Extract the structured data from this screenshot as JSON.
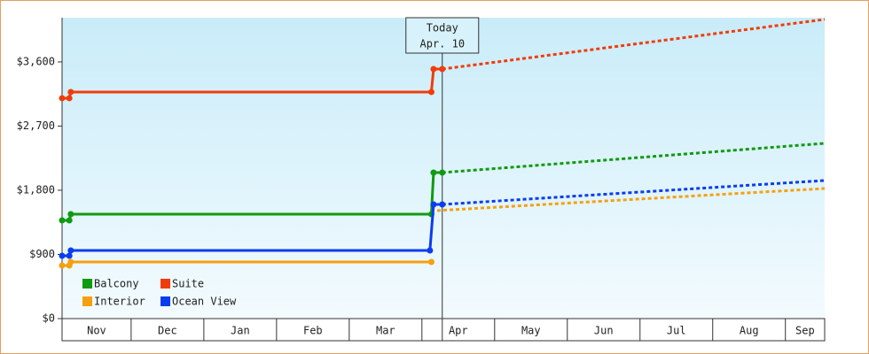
{
  "chart_data": {
    "type": "step-line",
    "ylim": [
      0,
      4220
    ],
    "yticks": [
      {
        "value": 0,
        "label": "$0"
      },
      {
        "value": 900,
        "label": "$900"
      },
      {
        "value": 1800,
        "label": "$1,800"
      },
      {
        "value": 2700,
        "label": "$2,700"
      },
      {
        "value": 3600,
        "label": "$3,600"
      }
    ],
    "xlim": [
      0.05,
      10.54
    ],
    "months": [
      "Nov",
      "Dec",
      "Jan",
      "Feb",
      "Mar",
      "Apr",
      "May",
      "Jun",
      "Jul",
      "Aug",
      "Sep"
    ],
    "today": {
      "x": 5.28,
      "label": "Today",
      "date": "Apr. 10"
    },
    "legend": "lower-left",
    "series": [
      {
        "name": "Balcony",
        "color": "#109a10",
        "x": [
          0.05,
          0.15,
          0.17,
          5.13,
          5.16,
          5.28
        ],
        "values": [
          1378,
          1378,
          1465,
          1465,
          2048,
          2048
        ],
        "projection": {
          "x": [
            5.28,
            10.54
          ],
          "values": [
            2048,
            2458
          ]
        }
      },
      {
        "name": "Suite",
        "color": "#f03c0a",
        "x": [
          0.05,
          0.15,
          0.17,
          5.13,
          5.16,
          5.28
        ],
        "values": [
          3091,
          3091,
          3178,
          3178,
          3500,
          3500
        ],
        "projection": {
          "x": [
            5.28,
            10.54
          ],
          "values": [
            3500,
            4196
          ]
        }
      },
      {
        "name": "Interior",
        "color": "#f5a010",
        "x": [
          0.05,
          0.15,
          0.17,
          5.13
        ],
        "values": [
          745,
          745,
          794,
          794
        ],
        "projection": {
          "x": [
            5.21,
            10.54
          ],
          "values": [
            1515,
            1825
          ]
        }
      },
      {
        "name": "Ocean View",
        "color": "#0a3cf0",
        "x": [
          0.05,
          0.15,
          0.17,
          5.11,
          5.16,
          5.28
        ],
        "values": [
          881,
          881,
          956,
          956,
          1601,
          1601
        ],
        "projection": {
          "x": [
            5.28,
            10.54
          ],
          "values": [
            1601,
            1937
          ]
        }
      }
    ]
  }
}
